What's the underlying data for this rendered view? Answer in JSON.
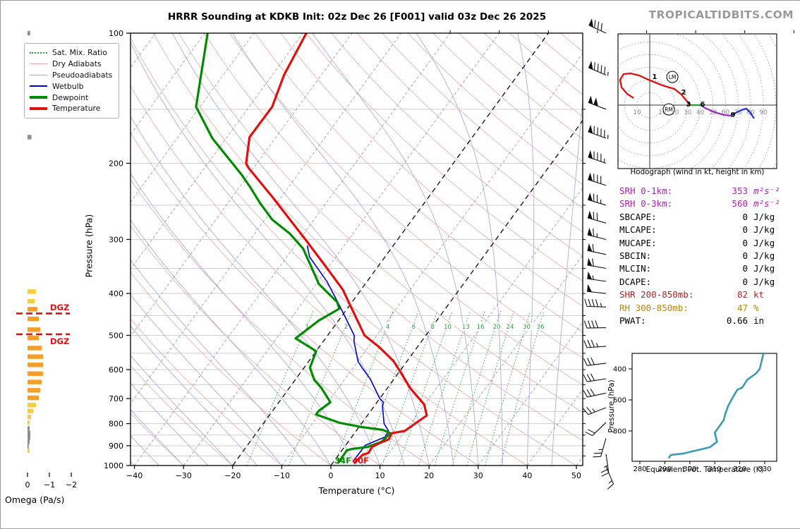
{
  "title": "HRRR Sounding at KDKB Init: 02z Dec 26 [F001] valid 03z Dec 26 2025",
  "watermark": "TROPICALTIDBITS.COM",
  "legend": {
    "items": [
      {
        "label": "Sat. Mix. Ratio",
        "color": "#2f9e44",
        "style": "dotted",
        "width": 2
      },
      {
        "label": "Dry Adiabats",
        "color": "#e2a9a9",
        "style": "solid",
        "width": 1
      },
      {
        "label": "Pseudoadiabats",
        "color": "#a9aede",
        "style": "solid",
        "width": 1
      },
      {
        "label": "Wetbulb",
        "color": "#0000cc",
        "style": "solid",
        "width": 2
      },
      {
        "label": "Dewpoint",
        "color": "#008b00",
        "style": "solid",
        "width": 4
      },
      {
        "label": "Temperature",
        "color": "#e01010",
        "style": "solid",
        "width": 4
      }
    ]
  },
  "stats": [
    {
      "label": "SRH 0-1km:",
      "value": "353",
      "unit": "m²s⁻²",
      "color": "#aa22aa",
      "italic": true
    },
    {
      "label": "SRH 0-3km:",
      "value": "560",
      "unit": "m²s⁻²",
      "color": "#aa22aa",
      "italic": true
    },
    {
      "label": "SBCAPE:",
      "value": "0",
      "unit": "J/kg",
      "color": "#000000",
      "italic": false
    },
    {
      "label": "MLCAPE:",
      "value": "0",
      "unit": "J/kg",
      "color": "#000000",
      "italic": false
    },
    {
      "label": "MUCAPE:",
      "value": "0",
      "unit": "J/kg",
      "color": "#000000",
      "italic": false
    },
    {
      "label": "SBCIN:",
      "value": "0",
      "unit": "J/kg",
      "color": "#000000",
      "italic": false
    },
    {
      "label": "MLCIN:",
      "value": "0",
      "unit": "J/kg",
      "color": "#000000",
      "italic": false
    },
    {
      "label": "DCAPE:",
      "value": "0",
      "unit": "J/kg",
      "color": "#000000",
      "italic": false
    },
    {
      "label": "SHR 200-850mb:",
      "value": "82",
      "unit": "kt",
      "color": "#b22222",
      "italic": false
    },
    {
      "label": "RH 300-850mb:",
      "value": "47",
      "unit": "%",
      "color": "#b8860b",
      "italic": false
    },
    {
      "label": "PWAT:",
      "value": "0.66",
      "unit": "in",
      "color": "#000000",
      "italic": false
    }
  ],
  "chart_data": {
    "skewt": {
      "type": "line",
      "xlabel": "Temperature (°C)",
      "ylabel": "Pressure (hPa)",
      "x_ticks": [
        -40,
        -30,
        -20,
        -10,
        0,
        10,
        20,
        30,
        40,
        50
      ],
      "y_ticks": [
        100,
        200,
        300,
        400,
        500,
        600,
        700,
        800,
        900,
        1000
      ],
      "xlim": [
        -40,
        50
      ],
      "plim": [
        100,
        1000
      ],
      "highlight_isotherms": [
        0,
        -20
      ],
      "mixing_ratio_labels": [
        1,
        2,
        4,
        6,
        8,
        10,
        13,
        16,
        20,
        24,
        30,
        36
      ],
      "dgz_label": "DGZ",
      "dgz_pressures": [
        445,
        497
      ],
      "surface_temp_label": "40F",
      "surface_dewp_label": "34F",
      "temperature_profile": [
        [
          100,
          -69.3
        ],
        [
          125,
          -67.6
        ],
        [
          148,
          -65.3
        ],
        [
          174,
          -65.4
        ],
        [
          200,
          -62.2
        ],
        [
          205,
          -61.0
        ],
        [
          239,
          -51.9
        ],
        [
          270,
          -44.9
        ],
        [
          300,
          -38.8
        ],
        [
          348,
          -30.4
        ],
        [
          392,
          -23.7
        ],
        [
          440,
          -18.4
        ],
        [
          500,
          -12.5
        ],
        [
          532,
          -7.8
        ],
        [
          573,
          -2.8
        ],
        [
          601,
          -0.3
        ],
        [
          663,
          4.7
        ],
        [
          722,
          9.9
        ],
        [
          766,
          12.1
        ],
        [
          832,
          9.9
        ],
        [
          842,
          7.6
        ],
        [
          870,
          7.9
        ],
        [
          889,
          6.5
        ],
        [
          906,
          5.6
        ],
        [
          935,
          5.8
        ],
        [
          945,
          4.9
        ],
        [
          985,
          4.4
        ]
      ],
      "dewpoint_profile": [
        [
          100,
          -89.4
        ],
        [
          148,
          -80.8
        ],
        [
          175,
          -72.8
        ],
        [
          213,
          -61.3
        ],
        [
          228,
          -57.6
        ],
        [
          247,
          -53.5
        ],
        [
          270,
          -48.5
        ],
        [
          291,
          -42.8
        ],
        [
          315,
          -37.9
        ],
        [
          368,
          -30.9
        ],
        [
          380,
          -29.5
        ],
        [
          419,
          -23.0
        ],
        [
          434,
          -21.6
        ],
        [
          462,
          -24.0
        ],
        [
          508,
          -26.1
        ],
        [
          544,
          -20.0
        ],
        [
          594,
          -18.8
        ],
        [
          634,
          -16.1
        ],
        [
          661,
          -13.5
        ],
        [
          714,
          -9.5
        ],
        [
          748,
          -10.6
        ],
        [
          762,
          -10.6
        ],
        [
          777,
          -8.0
        ],
        [
          797,
          -4.5
        ],
        [
          815,
          0.6
        ],
        [
          827,
          5.3
        ],
        [
          842,
          7.3
        ],
        [
          881,
          6.8
        ],
        [
          906,
          4.7
        ],
        [
          916,
          1.8
        ],
        [
          922,
          1.0
        ],
        [
          985,
          1.1
        ]
      ],
      "wetbulb_profile": [
        [
          310,
          -37.5
        ],
        [
          329,
          -35.4
        ],
        [
          375,
          -28.2
        ],
        [
          424,
          -22.3
        ],
        [
          500,
          -14.6
        ],
        [
          517,
          -13.7
        ],
        [
          575,
          -9.9
        ],
        [
          595,
          -8.1
        ],
        [
          630,
          -4.9
        ],
        [
          700,
          0.0
        ],
        [
          714,
          1.3
        ],
        [
          727,
          1.6
        ],
        [
          800,
          4.6
        ],
        [
          832,
          6.6
        ],
        [
          859,
          6.8
        ],
        [
          898,
          4.0
        ],
        [
          975,
          3.9
        ]
      ],
      "wind_barbs": [
        {
          "p": 100,
          "spd": 80,
          "dir": 295
        },
        {
          "p": 125,
          "spd": 95,
          "dir": 293
        },
        {
          "p": 150,
          "spd": 100,
          "dir": 291
        },
        {
          "p": 175,
          "spd": 95,
          "dir": 290
        },
        {
          "p": 200,
          "spd": 85,
          "dir": 289
        },
        {
          "p": 225,
          "spd": 80,
          "dir": 288
        },
        {
          "p": 250,
          "spd": 75,
          "dir": 287
        },
        {
          "p": 275,
          "spd": 70,
          "dir": 286
        },
        {
          "p": 300,
          "spd": 65,
          "dir": 284
        },
        {
          "p": 325,
          "spd": 60,
          "dir": 282
        },
        {
          "p": 350,
          "spd": 60,
          "dir": 280
        },
        {
          "p": 375,
          "spd": 55,
          "dir": 278
        },
        {
          "p": 400,
          "spd": 50,
          "dir": 276
        },
        {
          "p": 430,
          "spd": 45,
          "dir": 272
        },
        {
          "p": 480,
          "spd": 40,
          "dir": 269
        },
        {
          "p": 530,
          "spd": 35,
          "dir": 266
        },
        {
          "p": 580,
          "spd": 30,
          "dir": 263
        },
        {
          "p": 630,
          "spd": 30,
          "dir": 261
        },
        {
          "p": 680,
          "spd": 30,
          "dir": 258
        },
        {
          "p": 735,
          "spd": 25,
          "dir": 249
        },
        {
          "p": 795,
          "spd": 20,
          "dir": 226
        },
        {
          "p": 865,
          "spd": 25,
          "dir": 196
        },
        {
          "p": 940,
          "spd": 25,
          "dir": 172
        },
        {
          "p": 1005,
          "spd": 15,
          "dir": 157
        }
      ]
    },
    "omega": {
      "type": "bar",
      "xlabel": "Omega (Pa/s)",
      "x_ticks": [
        0,
        -1,
        -2
      ],
      "bars": [
        {
          "p": 100,
          "w": -0.12,
          "c": "gray"
        },
        {
          "p": 126,
          "w": -0.15,
          "c": "gray"
        },
        {
          "p": 149,
          "w": -0.18,
          "c": "gray"
        },
        {
          "p": 174,
          "w": -0.18,
          "c": "gray"
        },
        {
          "p": 396,
          "w": -0.39,
          "c": "yellow"
        },
        {
          "p": 417,
          "w": -0.32,
          "c": "yellow"
        },
        {
          "p": 435,
          "w": -0.45,
          "c": "orange"
        },
        {
          "p": 458,
          "w": -0.52,
          "c": "orange"
        },
        {
          "p": 485,
          "w": -0.58,
          "c": "orange"
        },
        {
          "p": 507,
          "w": -0.52,
          "c": "orange"
        },
        {
          "p": 535,
          "w": -0.65,
          "c": "orange"
        },
        {
          "p": 560,
          "w": -0.71,
          "c": "orange"
        },
        {
          "p": 585,
          "w": -0.71,
          "c": "orange"
        },
        {
          "p": 613,
          "w": -0.71,
          "c": "orange"
        },
        {
          "p": 641,
          "w": -0.65,
          "c": "orange"
        },
        {
          "p": 670,
          "w": -0.58,
          "c": "orange"
        },
        {
          "p": 697,
          "w": -0.52,
          "c": "orange"
        },
        {
          "p": 725,
          "w": -0.39,
          "c": "yellow"
        },
        {
          "p": 748,
          "w": -0.26,
          "c": "yellow"
        },
        {
          "p": 772,
          "w": -0.16,
          "c": "yellow"
        },
        {
          "p": 796,
          "w": -0.1,
          "c": "yellow"
        },
        {
          "p": 821,
          "w": -0.1,
          "c": "gray"
        },
        {
          "p": 841,
          "w": -0.13,
          "c": "gray"
        },
        {
          "p": 861,
          "w": -0.13,
          "c": "gray"
        },
        {
          "p": 881,
          "w": -0.1,
          "c": "gray"
        },
        {
          "p": 902,
          "w": -0.06,
          "c": "gray"
        },
        {
          "p": 923,
          "w": -0.1,
          "c": "yellow"
        }
      ]
    },
    "hodograph": {
      "type": "line",
      "caption": "Hodograph (wind in kt, height in km)",
      "ring_step_kt": 10,
      "ring_labels": [
        {
          "v": -10,
          "text": "10"
        },
        {
          "v": 10,
          "text": "10"
        },
        {
          "v": 20,
          "text": "20"
        },
        {
          "v": 30,
          "text": "30"
        },
        {
          "v": 40,
          "text": "40"
        },
        {
          "v": 50,
          "text": "50"
        },
        {
          "v": 60,
          "text": "60"
        },
        {
          "v": 70,
          "text": "70"
        },
        {
          "v": 80,
          "text": "80"
        },
        {
          "v": 90,
          "text": "90"
        }
      ],
      "trace_uv": [
        [
          -12.8,
          5.6
        ],
        [
          -17.9,
          8.9
        ],
        [
          -22.3,
          14.0
        ],
        [
          -23.5,
          20.1
        ],
        [
          -20.7,
          24.6
        ],
        [
          -15.1,
          25.1
        ],
        [
          -8.4,
          23.5
        ],
        [
          -1.1,
          20.1
        ],
        [
          10.1,
          15.6
        ],
        [
          19.6,
          12.8
        ],
        [
          25.1,
          8.4
        ],
        [
          29.1,
          3.4
        ],
        [
          32.4,
          0.0
        ],
        [
          40.2,
          0.0
        ],
        [
          43.6,
          -2.2
        ],
        [
          51.4,
          -5.6
        ],
        [
          58.7,
          -7.8
        ],
        [
          64.2,
          -8.4
        ],
        [
          67.0,
          -6.7
        ],
        [
          72.6,
          -3.9
        ],
        [
          76.5,
          -2.8
        ],
        [
          79.3,
          -5.6
        ],
        [
          82.7,
          -10.6
        ]
      ],
      "segments": [
        {
          "from": 0,
          "to": 12,
          "color": "#e01010"
        },
        {
          "from": 12,
          "to": 13,
          "color": "#1f9e2f"
        },
        {
          "from": 13,
          "to": 17,
          "color": "#9a2fbf"
        },
        {
          "from": 17,
          "to": 22,
          "color": "#2233dd"
        }
      ],
      "height_labels": [
        {
          "text": "1",
          "u": 3.9,
          "v": 22.3
        },
        {
          "text": "2",
          "u": 26.8,
          "v": 10.1
        },
        {
          "text": "3",
          "u": 30.7,
          "v": 0.6
        },
        {
          "text": "6",
          "u": 41.9,
          "v": 0.6
        },
        {
          "text": "9",
          "u": 65.9,
          "v": -7.8
        }
      ],
      "storm_motions": [
        {
          "text": "LM",
          "u": 17.9,
          "v": 22.3
        },
        {
          "text": "RM",
          "u": 15.1,
          "v": -3.4
        }
      ]
    },
    "thetae": {
      "type": "line",
      "xlabel": "Equivalent Pot. Temperature (K)",
      "ylabel": "Pressure (hPa)",
      "x_ticks": [
        280,
        290,
        300,
        310,
        320,
        330
      ],
      "y_ticks": [
        400,
        600,
        800
      ],
      "curve": [
        [
          300,
          329.5
        ],
        [
          400,
          328.0
        ],
        [
          430,
          326.5
        ],
        [
          470,
          323.0
        ],
        [
          520,
          321.0
        ],
        [
          535,
          319.0
        ],
        [
          575,
          317.5
        ],
        [
          640,
          315.3
        ],
        [
          690,
          314.2
        ],
        [
          730,
          313.6
        ],
        [
          800,
          310.5
        ],
        [
          810,
          310.0
        ],
        [
          845,
          310.5
        ],
        [
          870,
          310.9
        ],
        [
          905,
          308.0
        ],
        [
          945,
          297.5
        ],
        [
          955,
          292.4
        ],
        [
          975,
          291.5
        ]
      ]
    }
  }
}
